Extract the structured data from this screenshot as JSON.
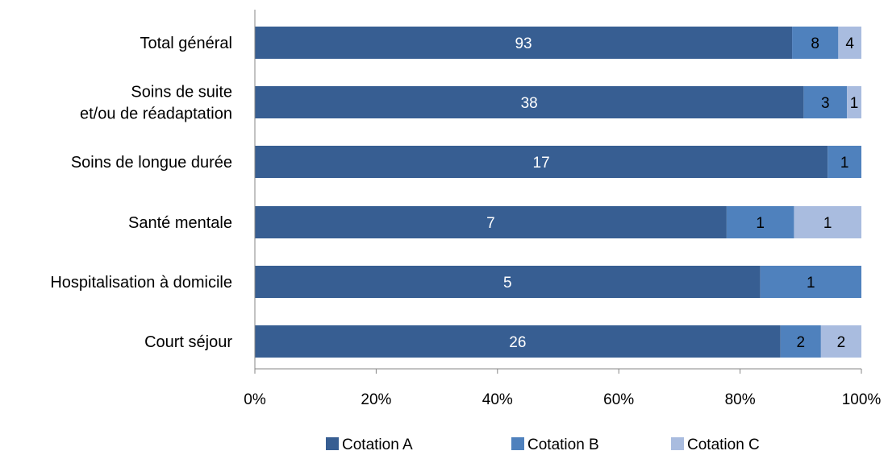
{
  "chart_data": {
    "type": "bar",
    "orientation": "horizontal",
    "stacked": "percent",
    "categories": [
      [
        "Total général"
      ],
      [
        "Soins de suite",
        "et/ou de réadaptation"
      ],
      [
        "Soins de longue durée"
      ],
      [
        "Santé mentale"
      ],
      [
        "Hospitalisation  à domicile"
      ],
      [
        "Court séjour"
      ]
    ],
    "series": [
      {
        "name": "Cotation A",
        "color": "#375e92",
        "label_color": "#ffffff",
        "values": [
          93,
          38,
          17,
          7,
          5,
          26
        ]
      },
      {
        "name": "Cotation B",
        "color": "#4f81bd",
        "label_color": "#000000",
        "values": [
          8,
          3,
          1,
          1,
          1,
          2
        ]
      },
      {
        "name": "Cotation C",
        "color": "#a9bcdf",
        "label_color": "#000000",
        "values": [
          4,
          1,
          0,
          1,
          0,
          2
        ]
      }
    ],
    "x_ticks": [
      "0%",
      "20%",
      "40%",
      "60%",
      "80%",
      "100%"
    ],
    "xlim": [
      0,
      100
    ],
    "grid": false,
    "legend_position": "bottom",
    "title": "",
    "xlabel": "",
    "ylabel": ""
  }
}
